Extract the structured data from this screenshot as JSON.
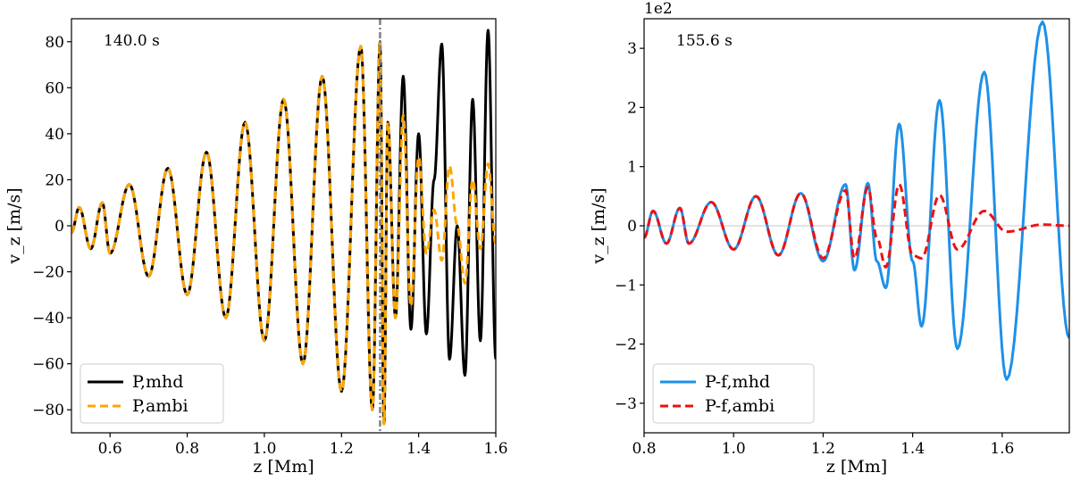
{
  "chart_data": [
    {
      "type": "line",
      "annotation": "140.0 s",
      "xlabel": "z [Mm]",
      "ylabel": "v_z [m/s]",
      "xlim": [
        0.5,
        1.6
      ],
      "ylim": [
        -90,
        90
      ],
      "xticks": [
        "0.6",
        "0.8",
        "1.0",
        "1.2",
        "1.4",
        "1.6"
      ],
      "yticks": [
        "80",
        "60",
        "40",
        "20",
        "0",
        "−20",
        "−40",
        "−60",
        "−80"
      ],
      "vline_x": 1.3,
      "legend": [
        "P,mhd",
        "P,ambi"
      ],
      "colors": {
        "mhd": "#000000",
        "ambi": "#ffa500",
        "vline": "#808080"
      },
      "series": [
        {
          "name": "P,mhd",
          "x": [
            0.5,
            0.52,
            0.55,
            0.58,
            0.6,
            0.65,
            0.7,
            0.75,
            0.8,
            0.85,
            0.9,
            0.95,
            1.0,
            1.05,
            1.1,
            1.15,
            1.2,
            1.25,
            1.28,
            1.3,
            1.31,
            1.32,
            1.34,
            1.36,
            1.38,
            1.4,
            1.42,
            1.44,
            1.46,
            1.48,
            1.5,
            1.52,
            1.54,
            1.56,
            1.58,
            1.6
          ],
          "y": [
            -3,
            8,
            -10,
            10,
            -12,
            18,
            -22,
            25,
            -30,
            32,
            -40,
            45,
            -50,
            55,
            -60,
            65,
            -72,
            78,
            -80,
            80,
            -86,
            45,
            -40,
            65,
            -45,
            40,
            -47,
            20,
            79,
            -58,
            0,
            -65,
            55,
            -50,
            85,
            -58
          ]
        },
        {
          "name": "P,ambi",
          "x": [
            0.5,
            0.52,
            0.55,
            0.58,
            0.6,
            0.65,
            0.7,
            0.75,
            0.8,
            0.85,
            0.9,
            0.95,
            1.0,
            1.05,
            1.1,
            1.15,
            1.2,
            1.25,
            1.28,
            1.3,
            1.31,
            1.32,
            1.34,
            1.36,
            1.38,
            1.4,
            1.42,
            1.44,
            1.46,
            1.48,
            1.5,
            1.52,
            1.54,
            1.56,
            1.58,
            1.6
          ],
          "y": [
            -3,
            8,
            -10,
            10,
            -12,
            18,
            -22,
            25,
            -30,
            32,
            -40,
            45,
            -50,
            55,
            -60,
            65,
            -72,
            78,
            -80,
            80,
            -86,
            45,
            -40,
            48,
            -35,
            30,
            -12,
            7,
            -15,
            26,
            0,
            -25,
            20,
            -10,
            27,
            -8
          ]
        }
      ]
    },
    {
      "type": "line",
      "annotation": "155.6 s",
      "xlabel": "z [Mm]",
      "ylabel": "v_z [m/s]",
      "scale_label": "1e2",
      "xlim": [
        0.8,
        1.75
      ],
      "ylim": [
        -3.5,
        3.5
      ],
      "xticks": [
        "0.8",
        "1.0",
        "1.2",
        "1.4",
        "1.6"
      ],
      "yticks": [
        "3",
        "2",
        "1",
        "0",
        "−1",
        "−2",
        "−3"
      ],
      "legend": [
        "P-f,mhd",
        "P-f,ambi"
      ],
      "colors": {
        "mhd": "#1e90e8",
        "ambi": "#ee1111",
        "zero": "#c8c8c8"
      },
      "series": [
        {
          "name": "P-f,mhd",
          "x": [
            0.8,
            0.82,
            0.85,
            0.88,
            0.9,
            0.95,
            1.0,
            1.05,
            1.1,
            1.15,
            1.2,
            1.25,
            1.27,
            1.3,
            1.32,
            1.34,
            1.37,
            1.4,
            1.42,
            1.46,
            1.5,
            1.56,
            1.61,
            1.69,
            1.75
          ],
          "y": [
            -0.2,
            0.25,
            -0.3,
            0.3,
            -0.3,
            0.4,
            -0.4,
            0.5,
            -0.5,
            0.55,
            -0.6,
            0.7,
            -0.75,
            0.72,
            -0.6,
            -1.05,
            1.72,
            -0.6,
            -1.7,
            2.12,
            -2.08,
            2.6,
            -2.6,
            3.45,
            -1.9
          ]
        },
        {
          "name": "P-f,ambi",
          "x": [
            0.8,
            0.82,
            0.85,
            0.88,
            0.9,
            0.95,
            1.0,
            1.05,
            1.1,
            1.15,
            1.2,
            1.25,
            1.27,
            1.3,
            1.32,
            1.34,
            1.37,
            1.4,
            1.42,
            1.46,
            1.5,
            1.56,
            1.61,
            1.69,
            1.75
          ],
          "y": [
            -0.2,
            0.25,
            -0.3,
            0.3,
            -0.3,
            0.4,
            -0.4,
            0.5,
            -0.5,
            0.55,
            -0.55,
            0.6,
            -0.55,
            0.65,
            -0.2,
            -0.7,
            0.7,
            -0.5,
            -0.55,
            0.52,
            -0.4,
            0.25,
            -0.1,
            0.02,
            0.0
          ]
        }
      ]
    }
  ]
}
